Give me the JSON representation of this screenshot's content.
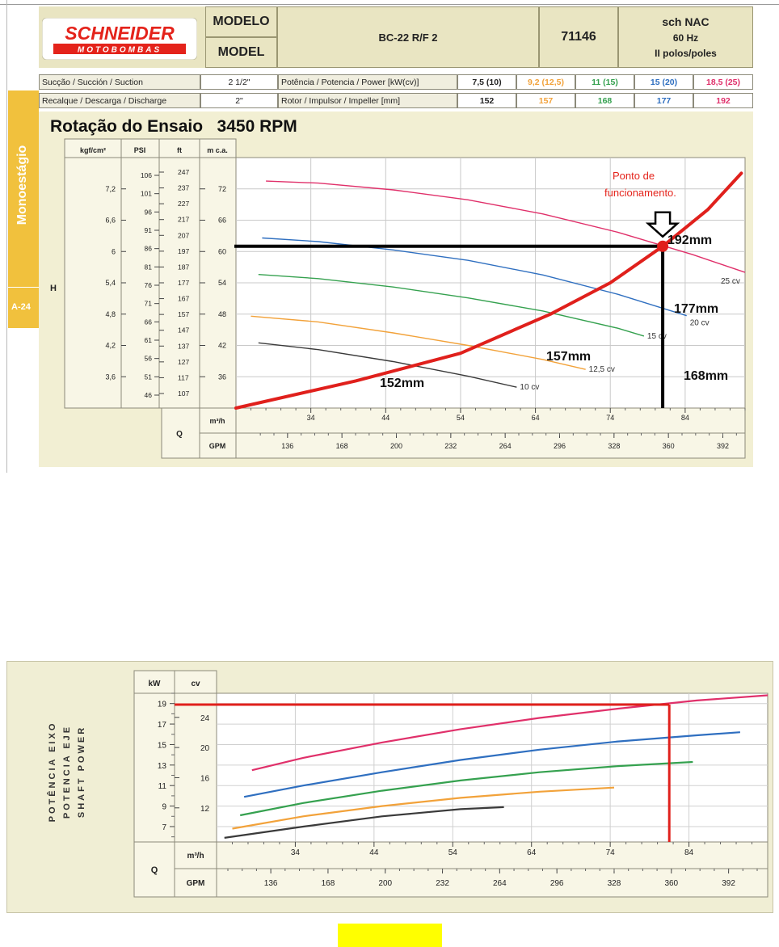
{
  "header": {
    "brand": "SCHNEIDER",
    "brand_sub": "MOTOBOMBAS",
    "modelo_label": "MODELO",
    "model_label": "MODEL",
    "model_value": "BC-22 R/F 2",
    "code": "71146",
    "spec_line1": "sch NAC",
    "spec_line2": "60 Hz",
    "spec_line3": "II polos/poles"
  },
  "specs": {
    "suction_label": "Sucção / Succión / Suction",
    "suction_value": "2 1/2\"",
    "discharge_label": "Recalque / Descarga / Discharge",
    "discharge_value": "2\"",
    "power_label": "Potência / Potencia / Power [kW(cv)]",
    "rotor_label": "Rotor / Impulsor / Impeller [mm]",
    "powers": [
      {
        "text": "7,5 (10)",
        "color": "#222222"
      },
      {
        "text": "9,2 (12,5)",
        "color": "#f2a23a"
      },
      {
        "text": "11 (15)",
        "color": "#35a14f"
      },
      {
        "text": "15 (20)",
        "color": "#2f6fc0"
      },
      {
        "text": "18,5 (25)",
        "color": "#e0306a"
      }
    ],
    "rotors": [
      {
        "text": "152",
        "color": "#222222"
      },
      {
        "text": "157",
        "color": "#f2a23a"
      },
      {
        "text": "168",
        "color": "#35a14f"
      },
      {
        "text": "177",
        "color": "#2f6fc0"
      },
      {
        "text": "192",
        "color": "#e0306a"
      }
    ]
  },
  "side_tab": {
    "label": "Monoestágio",
    "page": "A-24"
  },
  "chart_data": [
    {
      "type": "line",
      "title": "Rotação do Ensaio   3450 RPM",
      "ylabel": "H",
      "xlabel": "Q",
      "x_unit_label": "m³/h",
      "x2_unit_label": "GPM",
      "y_unit_labels": [
        "kgf/cm²",
        "PSI",
        "ft",
        "m c.a."
      ],
      "xlim": [
        24,
        92
      ],
      "ylim": [
        30,
        78
      ],
      "x_ticks": [
        34,
        44,
        54,
        64,
        74,
        84
      ],
      "gpm_ticks": [
        136,
        168,
        200,
        232,
        264,
        296,
        328,
        360,
        392
      ],
      "y_ticks_mca": [
        36,
        42,
        48,
        54,
        60,
        66,
        72
      ],
      "y_ticks_kgf": [
        "3,6",
        "4,2",
        "4,8",
        "5,4",
        "6",
        "6,6",
        "7,2"
      ],
      "y_ticks_psi": [
        "46",
        "51",
        "56",
        "61",
        "66",
        "71",
        "76",
        "81",
        "86",
        "91",
        "96",
        "101",
        "106"
      ],
      "y_ticks_ft": [
        "107",
        "117",
        "127",
        "137",
        "147",
        "157",
        "167",
        "177",
        "187",
        "197",
        "207",
        "217",
        "227",
        "237",
        "247"
      ],
      "series": [
        {
          "name": "10 cv",
          "color": "#3a3a3a",
          "x": [
            27,
            35,
            45,
            55,
            61.5
          ],
          "y": [
            42.5,
            41.2,
            38.9,
            36.1,
            34.0
          ]
        },
        {
          "name": "12,5 cv",
          "color": "#f2a23a",
          "x": [
            26,
            35,
            45,
            55,
            65,
            70.7
          ],
          "y": [
            47.6,
            46.5,
            44.4,
            42.0,
            39.3,
            37.4
          ]
        },
        {
          "name": "15 cv",
          "color": "#35a14f",
          "x": [
            27,
            35,
            45,
            55,
            65,
            75,
            78.5
          ],
          "y": [
            55.6,
            54.8,
            53.2,
            51.1,
            48.6,
            45.3,
            43.8
          ]
        },
        {
          "name": "20 cv",
          "color": "#2f6fc0",
          "x": [
            27.5,
            35,
            45,
            55,
            65,
            75,
            84.2
          ],
          "y": [
            62.6,
            61.9,
            60.3,
            58.3,
            55.5,
            51.8,
            47.7
          ]
        },
        {
          "name": "25 cv",
          "color": "#e0306a",
          "x": [
            28,
            35,
            45,
            55,
            65,
            75,
            85,
            92
          ],
          "y": [
            73.5,
            73.1,
            71.8,
            69.9,
            67.2,
            63.7,
            59.4,
            56.0
          ]
        }
      ],
      "system_curve": {
        "color": "#e0201c",
        "x": [
          24,
          40,
          54,
          66,
          74,
          81,
          87,
          91.5
        ],
        "y": [
          30.0,
          35.2,
          40.5,
          48.0,
          54.0,
          61.0,
          68.0,
          75.0
        ]
      },
      "operating_point": {
        "x": 81,
        "y": 61
      },
      "impeller_labels": [
        "152mm",
        "157mm",
        "168mm",
        "177mm",
        "192mm"
      ],
      "annotation": "Ponto de funcionamento."
    },
    {
      "type": "line",
      "ylabel": "POTÊNCIA EIXO / POTENCIA EJE / SHAFT POWER",
      "xlabel": "Q",
      "x_unit_label": "m³/h",
      "x2_unit_label": "GPM",
      "y_unit_labels": [
        "kW",
        "cv"
      ],
      "xlim": [
        24,
        94
      ],
      "ylim": [
        5.5,
        20
      ],
      "x_ticks": [
        34,
        44,
        54,
        64,
        74,
        84
      ],
      "gpm_ticks": [
        136,
        168,
        200,
        232,
        264,
        296,
        328,
        360,
        392
      ],
      "y_ticks_kw": [
        7,
        9,
        11,
        13,
        15,
        17,
        19
      ],
      "y_ticks_cv": [
        12,
        16,
        20,
        24
      ],
      "series": [
        {
          "name": "10 cv",
          "color": "#3a3a3a",
          "x": [
            25,
            35,
            45,
            55,
            60.5
          ],
          "y": [
            5.9,
            7.0,
            8.0,
            8.7,
            8.9
          ]
        },
        {
          "name": "12,5 cv",
          "color": "#f2a23a",
          "x": [
            26,
            35,
            45,
            55,
            65,
            74.5
          ],
          "y": [
            6.8,
            8.0,
            9.0,
            9.8,
            10.4,
            10.8
          ]
        },
        {
          "name": "15 cv",
          "color": "#35a14f",
          "x": [
            27,
            35,
            45,
            55,
            65,
            75,
            84.5
          ],
          "y": [
            8.1,
            9.3,
            10.5,
            11.5,
            12.3,
            12.9,
            13.3
          ]
        },
        {
          "name": "20 cv",
          "color": "#2f6fc0",
          "x": [
            27.5,
            35,
            45,
            55,
            65,
            75,
            85,
            90.5
          ],
          "y": [
            9.9,
            11.0,
            12.3,
            13.5,
            14.5,
            15.3,
            15.9,
            16.2
          ]
        },
        {
          "name": "25 cv",
          "color": "#e0306a",
          "x": [
            28.5,
            35,
            45,
            55,
            65,
            75,
            85,
            94
          ],
          "y": [
            12.5,
            13.7,
            15.2,
            16.5,
            17.6,
            18.5,
            19.3,
            19.8
          ]
        }
      ],
      "guide_lines": {
        "color": "#e0201c",
        "kw": 18.9,
        "q": 81.5
      }
    }
  ]
}
